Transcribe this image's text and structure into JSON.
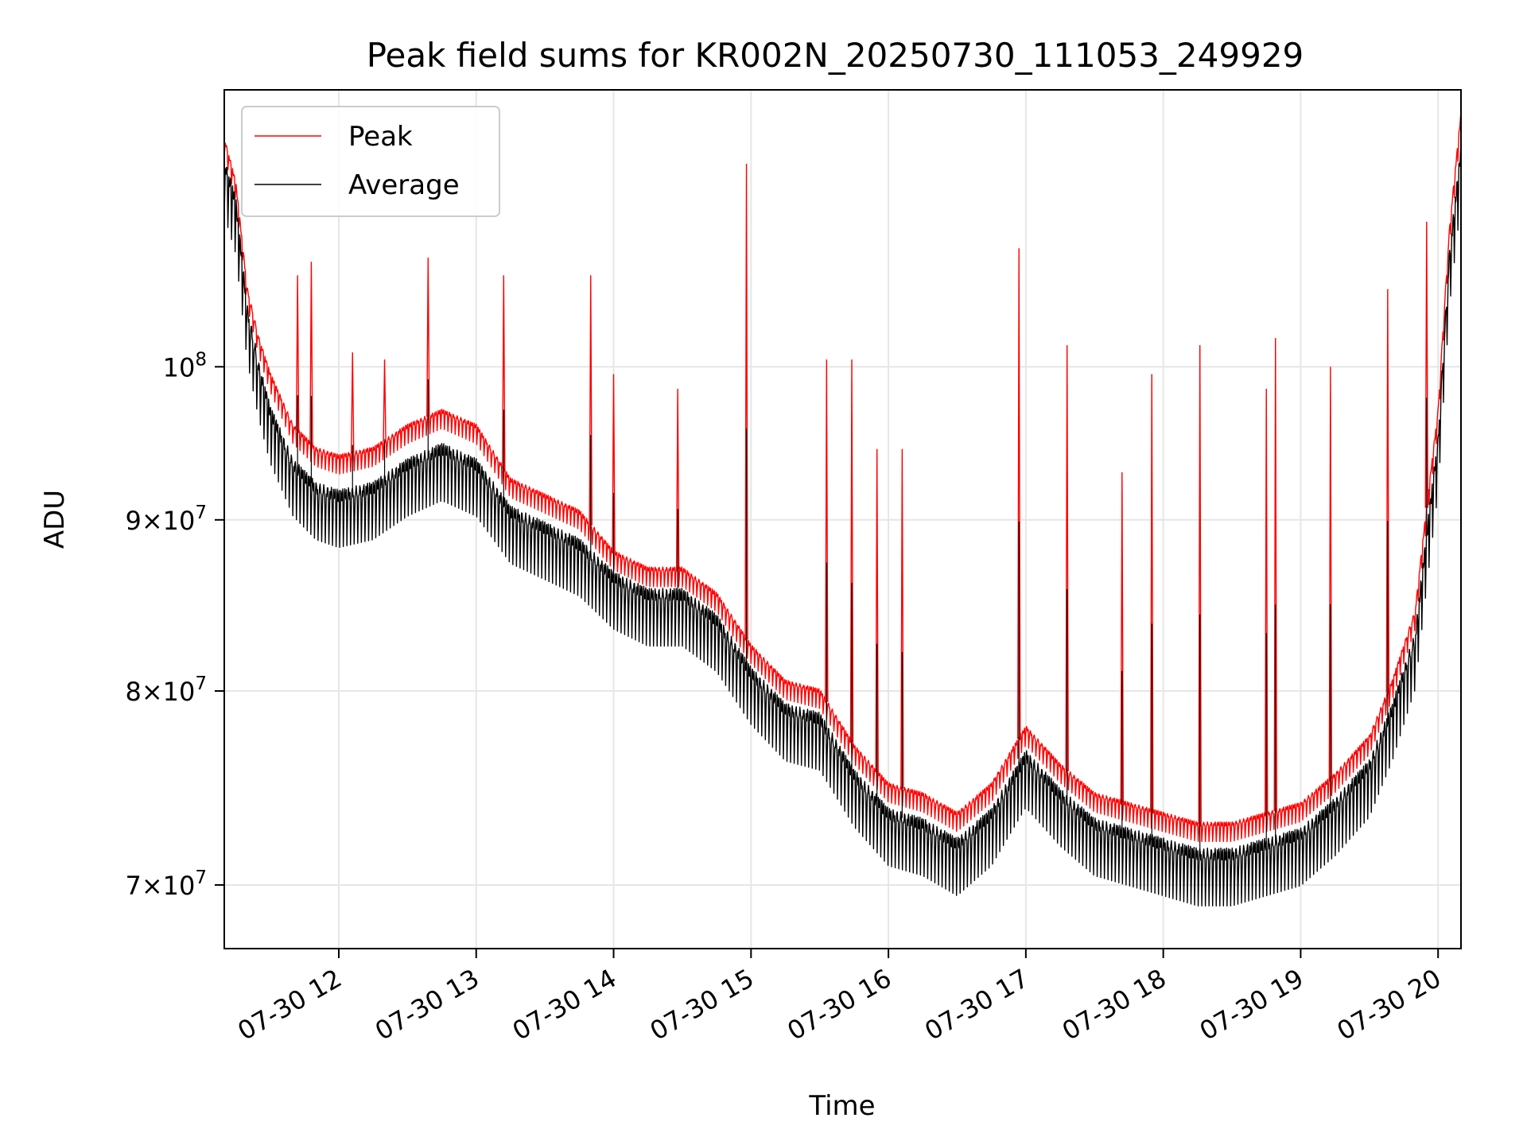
{
  "chart_data": {
    "type": "line",
    "title": "Peak field sums for KR002N_20250730_111053_249929",
    "xlabel": "Time",
    "ylabel": "ADU",
    "yscale": "log",
    "x_range": [
      "2025-07-30 11:10",
      "2025-07-30 20:10"
    ],
    "ylim": [
      67000000,
      121000000
    ],
    "x_ticks": [
      {
        "t": "2025-07-30 12:00",
        "label": "07-30 12"
      },
      {
        "t": "2025-07-30 13:00",
        "label": "07-30 13"
      },
      {
        "t": "2025-07-30 14:00",
        "label": "07-30 14"
      },
      {
        "t": "2025-07-30 15:00",
        "label": "07-30 15"
      },
      {
        "t": "2025-07-30 16:00",
        "label": "07-30 16"
      },
      {
        "t": "2025-07-30 17:00",
        "label": "07-30 17"
      },
      {
        "t": "2025-07-30 18:00",
        "label": "07-30 18"
      },
      {
        "t": "2025-07-30 19:00",
        "label": "07-30 19"
      },
      {
        "t": "2025-07-30 20:00",
        "label": "07-30 20"
      }
    ],
    "y_ticks": [
      {
        "v": 70000000,
        "mant": "7",
        "exp": "7"
      },
      {
        "v": 80000000,
        "mant": "8",
        "exp": "7"
      },
      {
        "v": 90000000,
        "mant": "9",
        "exp": "7"
      },
      {
        "v": 100000000,
        "mant": "",
        "exp": "8"
      }
    ],
    "grid": true,
    "legend_position": "top-left",
    "series": [
      {
        "name": "Average",
        "color": "#000000",
        "x": [
          "2025-07-30 11:10",
          "2025-07-30 11:15",
          "2025-07-30 11:20",
          "2025-07-30 11:25",
          "2025-07-30 11:30",
          "2025-07-30 11:40",
          "2025-07-30 11:50",
          "2025-07-30 12:00",
          "2025-07-30 12:15",
          "2025-07-30 12:30",
          "2025-07-30 12:45",
          "2025-07-30 13:00",
          "2025-07-30 13:15",
          "2025-07-30 13:30",
          "2025-07-30 13:45",
          "2025-07-30 14:00",
          "2025-07-30 14:15",
          "2025-07-30 14:30",
          "2025-07-30 14:45",
          "2025-07-30 15:00",
          "2025-07-30 15:15",
          "2025-07-30 15:30",
          "2025-07-30 15:45",
          "2025-07-30 16:00",
          "2025-07-30 16:15",
          "2025-07-30 16:30",
          "2025-07-30 16:45",
          "2025-07-30 17:00",
          "2025-07-30 17:15",
          "2025-07-30 17:30",
          "2025-07-30 17:45",
          "2025-07-30 18:00",
          "2025-07-30 18:15",
          "2025-07-30 18:30",
          "2025-07-30 18:45",
          "2025-07-30 19:00",
          "2025-07-30 19:15",
          "2025-07-30 19:30",
          "2025-07-30 19:40",
          "2025-07-30 19:50",
          "2025-07-30 20:00",
          "2025-07-30 20:05",
          "2025-07-30 20:10"
        ],
        "y": [
          115000000,
          112000000,
          104000000,
          100000000,
          97000000,
          93500000,
          92000000,
          91500000,
          92000000,
          93500000,
          94500000,
          93500000,
          90500000,
          89500000,
          88500000,
          86500000,
          85500000,
          85500000,
          84000000,
          81000000,
          79000000,
          78500000,
          75500000,
          73500000,
          73000000,
          72000000,
          73500000,
          76500000,
          74500000,
          73000000,
          72500000,
          72000000,
          71500000,
          71500000,
          72000000,
          72500000,
          74000000,
          76000000,
          79000000,
          83000000,
          95000000,
          108000000,
          116000000
        ]
      },
      {
        "name": "Peak",
        "color": "#ff0000",
        "x": [
          "2025-07-30 11:10",
          "2025-07-30 11:15",
          "2025-07-30 11:20",
          "2025-07-30 11:25",
          "2025-07-30 11:30",
          "2025-07-30 11:40",
          "2025-07-30 11:50",
          "2025-07-30 12:00",
          "2025-07-30 12:15",
          "2025-07-30 12:30",
          "2025-07-30 12:45",
          "2025-07-30 13:00",
          "2025-07-30 13:15",
          "2025-07-30 13:30",
          "2025-07-30 13:45",
          "2025-07-30 14:00",
          "2025-07-30 14:15",
          "2025-07-30 14:30",
          "2025-07-30 14:45",
          "2025-07-30 15:00",
          "2025-07-30 15:15",
          "2025-07-30 15:30",
          "2025-07-30 15:45",
          "2025-07-30 16:00",
          "2025-07-30 16:15",
          "2025-07-30 16:30",
          "2025-07-30 16:45",
          "2025-07-30 17:00",
          "2025-07-30 17:15",
          "2025-07-30 17:30",
          "2025-07-30 17:45",
          "2025-07-30 18:00",
          "2025-07-30 18:15",
          "2025-07-30 18:30",
          "2025-07-30 18:45",
          "2025-07-30 19:00",
          "2025-07-30 19:15",
          "2025-07-30 19:30",
          "2025-07-30 19:40",
          "2025-07-30 19:50",
          "2025-07-30 20:00",
          "2025-07-30 20:05",
          "2025-07-30 20:10"
        ],
        "y": [
          117000000,
          113500000,
          105500000,
          102000000,
          99500000,
          96000000,
          94500000,
          94000000,
          94500000,
          96000000,
          97000000,
          96000000,
          92500000,
          91500000,
          90500000,
          88000000,
          87000000,
          87000000,
          85500000,
          82500000,
          80500000,
          80000000,
          77000000,
          75000000,
          74500000,
          73500000,
          75000000,
          78000000,
          76000000,
          74500000,
          74000000,
          73500000,
          73000000,
          73000000,
          73500000,
          74000000,
          75500000,
          77500000,
          80500000,
          84500000,
          97000000,
          110000000,
          119000000
        ]
      }
    ],
    "spikes": [
      {
        "x": "2025-07-30 11:42",
        "y": 106500000
      },
      {
        "x": "2025-07-30 11:48",
        "y": 107500000
      },
      {
        "x": "2025-07-30 12:06",
        "y": 101000000
      },
      {
        "x": "2025-07-30 12:20",
        "y": 100500000
      },
      {
        "x": "2025-07-30 12:39",
        "y": 107800000
      },
      {
        "x": "2025-07-30 13:12",
        "y": 106500000
      },
      {
        "x": "2025-07-30 13:50",
        "y": 106500000
      },
      {
        "x": "2025-07-30 14:00",
        "y": 99500000
      },
      {
        "x": "2025-07-30 14:28",
        "y": 98500000
      },
      {
        "x": "2025-07-30 14:58",
        "y": 115000000
      },
      {
        "x": "2025-07-30 15:33",
        "y": 100500000
      },
      {
        "x": "2025-07-30 15:44",
        "y": 100500000
      },
      {
        "x": "2025-07-30 15:55",
        "y": 94500000
      },
      {
        "x": "2025-07-30 16:06",
        "y": 94500000
      },
      {
        "x": "2025-07-30 16:57",
        "y": 108500000
      },
      {
        "x": "2025-07-30 17:18",
        "y": 101500000
      },
      {
        "x": "2025-07-30 17:42",
        "y": 93000000
      },
      {
        "x": "2025-07-30 17:55",
        "y": 99500000
      },
      {
        "x": "2025-07-30 18:16",
        "y": 101500000
      },
      {
        "x": "2025-07-30 18:45",
        "y": 98500000
      },
      {
        "x": "2025-07-30 18:49",
        "y": 102000000
      },
      {
        "x": "2025-07-30 19:13",
        "y": 100000000
      },
      {
        "x": "2025-07-30 19:38",
        "y": 105500000
      },
      {
        "x": "2025-07-30 19:55",
        "y": 110500000
      }
    ]
  }
}
